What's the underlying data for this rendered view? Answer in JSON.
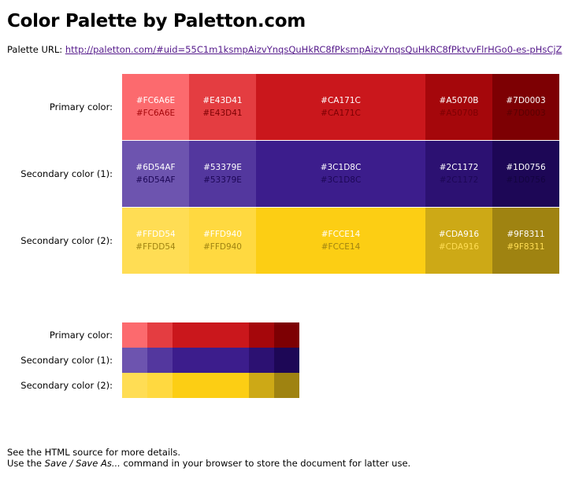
{
  "title": "Color Palette by Paletton.com",
  "palette_url_label": "Palette URL:",
  "palette_url": "http://paletton.com/#uid=55C1m1ksmpAizvYnqsQuHkRC8fPksmpAizvYnqsQuHkRC8fPktvvFlrHGo0-es-pHsCjZ",
  "rows": [
    {
      "label": "Primary color:",
      "colors": [
        "#FC6A6E",
        "#E43D41",
        "#CA171C",
        "#A5070B",
        "#7D0003"
      ],
      "second_text_colors": [
        "#FC6A6E",
        "#E43D41",
        "#CA171C",
        "#A5070B",
        "#7D0003"
      ]
    },
    {
      "label": "Secondary color (1):",
      "colors": [
        "#6D54AF",
        "#53379E",
        "#3C1D8C",
        "#2C1172",
        "#1D0756"
      ],
      "second_text_colors": [
        "#6D54AF",
        "#53379E",
        "#3C1D8C",
        "#2C1172",
        "#1D0756"
      ]
    },
    {
      "label": "Secondary color (2):",
      "colors": [
        "#FFDD54",
        "#FFD940",
        "#FCCE14",
        "#CDA916",
        "#9F8311"
      ],
      "second_text_colors": [
        "#FFDD54",
        "#FFD940",
        "#FCCE14",
        "#CDA916",
        "#9F8311"
      ]
    }
  ],
  "small_rows": [
    {
      "label": "Primary color:"
    },
    {
      "label": "Secondary color (1):"
    },
    {
      "label": "Secondary color (2):"
    }
  ],
  "footer": {
    "line1": "See the HTML source for more details.",
    "line2_prefix": "Use the ",
    "line2_emph": "Save / Save As...",
    "line2_suffix": " command in your browser to store the document for latter use."
  }
}
